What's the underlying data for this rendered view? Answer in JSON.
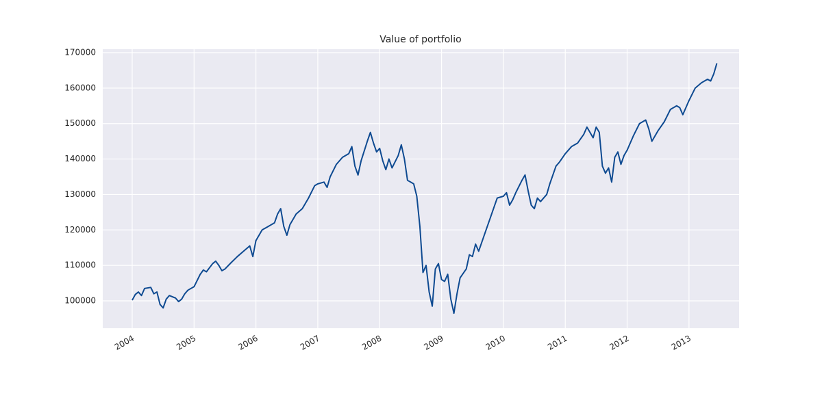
{
  "chart_data": {
    "type": "line",
    "title": "Value of portfolio",
    "x": [
      2004.0,
      2004.05,
      2004.1,
      2004.15,
      2004.2,
      2004.3,
      2004.35,
      2004.4,
      2004.45,
      2004.5,
      2004.55,
      2004.6,
      2004.7,
      2004.75,
      2004.8,
      2004.85,
      2004.9,
      2005.0,
      2005.1,
      2005.15,
      2005.2,
      2005.3,
      2005.35,
      2005.4,
      2005.45,
      2005.5,
      2005.6,
      2005.7,
      2005.8,
      2005.9,
      2005.95,
      2006.0,
      2006.1,
      2006.2,
      2006.3,
      2006.35,
      2006.4,
      2006.45,
      2006.5,
      2006.55,
      2006.65,
      2006.75,
      2006.85,
      2006.95,
      2007.0,
      2007.1,
      2007.15,
      2007.2,
      2007.3,
      2007.4,
      2007.5,
      2007.55,
      2007.6,
      2007.65,
      2007.7,
      2007.8,
      2007.85,
      2007.9,
      2007.95,
      2008.0,
      2008.05,
      2008.1,
      2008.15,
      2008.2,
      2008.3,
      2008.35,
      2008.4,
      2008.45,
      2008.5,
      2008.55,
      2008.6,
      2008.65,
      2008.7,
      2008.75,
      2008.8,
      2008.85,
      2008.9,
      2008.95,
      2009.0,
      2009.05,
      2009.1,
      2009.15,
      2009.2,
      2009.25,
      2009.3,
      2009.4,
      2009.45,
      2009.5,
      2009.55,
      2009.6,
      2009.7,
      2009.8,
      2009.85,
      2009.9,
      2010.0,
      2010.05,
      2010.1,
      2010.15,
      2010.2,
      2010.3,
      2010.35,
      2010.4,
      2010.45,
      2010.5,
      2010.55,
      2010.6,
      2010.7,
      2010.75,
      2010.85,
      2010.9,
      2011.0,
      2011.1,
      2011.2,
      2011.3,
      2011.35,
      2011.4,
      2011.45,
      2011.5,
      2011.55,
      2011.6,
      2011.65,
      2011.7,
      2011.75,
      2011.8,
      2011.85,
      2011.9,
      2011.95,
      2012.0,
      2012.1,
      2012.2,
      2012.3,
      2012.35,
      2012.4,
      2012.45,
      2012.5,
      2012.6,
      2012.7,
      2012.8,
      2012.85,
      2012.9,
      2012.95,
      2013.0,
      2013.1,
      2013.2,
      2013.3,
      2013.35,
      2013.4,
      2013.45
    ],
    "series": [
      {
        "color": "#0e4a91",
        "values": [
          100200,
          101800,
          102500,
          101500,
          103500,
          103800,
          102000,
          102500,
          99000,
          98000,
          100500,
          101500,
          100800,
          99800,
          100500,
          102000,
          103000,
          104000,
          107500,
          108700,
          108200,
          110500,
          111200,
          110000,
          108500,
          109000,
          110800,
          112500,
          114000,
          115500,
          112500,
          117000,
          120000,
          121000,
          122000,
          124500,
          126000,
          121000,
          118500,
          121500,
          124500,
          126000,
          129000,
          132500,
          133000,
          133500,
          132000,
          135000,
          138500,
          140500,
          141500,
          143500,
          138000,
          135500,
          139500,
          145000,
          147500,
          144500,
          142000,
          143000,
          139500,
          137000,
          140000,
          137500,
          141000,
          144000,
          140000,
          134000,
          133500,
          133000,
          129500,
          121000,
          108000,
          110000,
          102500,
          98500,
          109000,
          110500,
          106000,
          105500,
          107500,
          100500,
          96500,
          102000,
          106500,
          109000,
          113000,
          112500,
          116000,
          114000,
          119000,
          124000,
          126500,
          129000,
          129500,
          130500,
          127000,
          128500,
          130500,
          134000,
          135500,
          131000,
          127000,
          126000,
          129000,
          128000,
          130000,
          133000,
          138000,
          139000,
          141500,
          143500,
          144500,
          147000,
          149000,
          147500,
          146000,
          149000,
          147500,
          138000,
          136000,
          137500,
          133500,
          140500,
          142000,
          138500,
          141000,
          142500,
          146500,
          150000,
          151000,
          148500,
          145000,
          146500,
          148000,
          150500,
          154000,
          155000,
          154500,
          152500,
          154500,
          156500,
          160000,
          161500,
          162500,
          162000,
          164000,
          167000
        ]
      }
    ],
    "xlim": [
      2003.524,
      2013.81
    ],
    "xticks": [
      2004,
      2005,
      2006,
      2007,
      2008,
      2009,
      2010,
      2011,
      2012,
      2013
    ],
    "ylim": [
      92287,
      170964
    ],
    "yticks": [
      100000,
      110000,
      120000,
      130000,
      140000,
      150000,
      160000,
      170000
    ],
    "grid": true
  }
}
